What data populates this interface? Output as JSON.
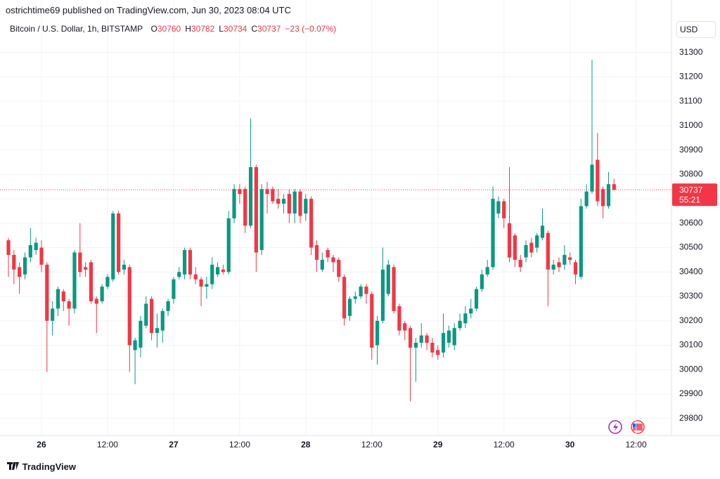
{
  "header": {
    "publisher": "ostrichtime69 published on TradingView.com, Jun 30, 2023 08:04 UTC"
  },
  "footer": {
    "brand": "TradingView"
  },
  "chart_data": {
    "type": "candlestick",
    "symbol": "Bitcoin / U.S. Dollar, 1h, BITSTAMP",
    "ohlc_labels": [
      "O",
      "H",
      "L",
      "C"
    ],
    "change_label": "−23 (−0.07%)",
    "currency": "USD",
    "countdown": "55:21",
    "up_color": "#089981",
    "down_color": "#f23645",
    "grid": true,
    "ylim": [
      29730,
      31515
    ],
    "yticks": [
      29800,
      29900,
      30000,
      30100,
      30200,
      30300,
      30400,
      30500,
      30600,
      30700,
      30800,
      30900,
      31000,
      31100,
      31200,
      31300
    ],
    "categories": [
      null,
      null,
      null,
      null,
      null,
      null,
      "26",
      null,
      null,
      null,
      null,
      null,
      null,
      null,
      null,
      null,
      null,
      null,
      "12:00",
      null,
      null,
      null,
      null,
      null,
      null,
      null,
      null,
      null,
      null,
      null,
      "27",
      null,
      null,
      null,
      null,
      null,
      null,
      null,
      null,
      null,
      null,
      null,
      "12:00",
      null,
      null,
      null,
      null,
      null,
      null,
      null,
      null,
      null,
      null,
      null,
      "28",
      null,
      null,
      null,
      null,
      null,
      null,
      null,
      null,
      null,
      null,
      null,
      "12:00",
      null,
      null,
      null,
      null,
      null,
      null,
      null,
      null,
      null,
      null,
      null,
      "29",
      null,
      null,
      null,
      null,
      null,
      null,
      null,
      null,
      null,
      null,
      null,
      "12:00",
      null,
      null,
      null,
      null,
      null,
      null,
      null,
      null,
      null,
      null,
      null,
      "30",
      null,
      null,
      null,
      null,
      null,
      null,
      null,
      null,
      null,
      null,
      null,
      "12:00"
    ],
    "open": [
      30530,
      30470,
      30420,
      30390,
      30460,
      30490,
      30500,
      30430,
      30200,
      30250,
      30320,
      30280,
      30250,
      30480,
      30420,
      30440,
      30290,
      30280,
      30340,
      30370,
      30640,
      30410,
      30420,
      30080,
      30090,
      30180,
      30290,
      30150,
      30160,
      30240,
      30290,
      30380,
      30390,
      30490,
      30390,
      30370,
      30340,
      30350,
      30390,
      30410,
      30400,
      30620,
      30740,
      30740,
      30590,
      30830,
      30490,
      30740,
      30740,
      30700,
      30680,
      30720,
      30640,
      30730,
      30640,
      30700,
      30510,
      30410,
      30490,
      30460,
      30450,
      30380,
      30220,
      30290,
      30300,
      30340,
      30310,
      30100,
      30200,
      30310,
      30420,
      30260,
      30190,
      30170,
      30090,
      30110,
      30140,
      30110,
      30080,
      30070,
      30110,
      30100,
      30170,
      30190,
      30230,
      30250,
      30330,
      30390,
      30420,
      30640,
      30690,
      30600,
      30550,
      30450,
      30460,
      30520,
      30500,
      30540,
      30560,
      30410,
      30440,
      30430,
      30460,
      30440,
      30380,
      30670,
      30730,
      30860,
      30740,
      30670,
      30760,
      null,
      null,
      null,
      null
    ],
    "high": [
      30540,
      30490,
      30440,
      30480,
      30580,
      30540,
      30530,
      30440,
      30280,
      30340,
      30330,
      30290,
      30490,
      30600,
      30440,
      30450,
      30300,
      30350,
      30390,
      30650,
      30650,
      30450,
      30430,
      30130,
      30220,
      30300,
      30300,
      30230,
      30250,
      30290,
      30380,
      30420,
      30500,
      30500,
      30420,
      30380,
      30380,
      30460,
      30440,
      30430,
      30650,
      30760,
      30760,
      30750,
      31030,
      30840,
      30760,
      30770,
      30750,
      30740,
      30720,
      30740,
      30740,
      30740,
      30720,
      30710,
      30530,
      30480,
      30500,
      30470,
      30460,
      30390,
      30300,
      30320,
      30350,
      30350,
      30320,
      30220,
      30500,
      30450,
      30430,
      30270,
      30200,
      30180,
      30130,
      30190,
      30150,
      30130,
      30100,
      30230,
      30180,
      30190,
      30230,
      30260,
      30290,
      30340,
      30410,
      30450,
      30750,
      30710,
      30700,
      30830,
      30560,
      30470,
      30530,
      30540,
      30560,
      30660,
      30570,
      30450,
      30460,
      30510,
      30480,
      30450,
      30700,
      30760,
      31270,
      30970,
      30750,
      30810,
      30782,
      null,
      null,
      null,
      null
    ],
    "low": [
      30380,
      30350,
      30310,
      30370,
      30440,
      30470,
      30400,
      29990,
      30140,
      30220,
      30240,
      30180,
      30230,
      30380,
      30380,
      30270,
      30150,
      30270,
      30330,
      30360,
      30390,
      30390,
      29990,
      29940,
      30050,
      30170,
      30120,
      30090,
      30110,
      30220,
      30270,
      30370,
      30370,
      30370,
      30350,
      30260,
      30290,
      30330,
      30380,
      30390,
      30390,
      30600,
      30680,
      30560,
      30580,
      30400,
      30470,
      30640,
      30680,
      30660,
      30640,
      30600,
      30600,
      30600,
      30610,
      30470,
      30400,
      30400,
      30440,
      30400,
      30360,
      30180,
      30200,
      30270,
      30290,
      30270,
      30040,
      30020,
      30190,
      30300,
      30230,
      30140,
      30120,
      29870,
      29950,
      30090,
      30080,
      30050,
      30040,
      30050,
      30090,
      30080,
      30160,
      30170,
      30210,
      30240,
      30320,
      30380,
      30410,
      30620,
      30580,
      30440,
      30420,
      30400,
      30440,
      30460,
      30480,
      30530,
      30260,
      30390,
      30400,
      30410,
      30430,
      30350,
      30370,
      30660,
      30720,
      30670,
      30620,
      30660,
      30734,
      null,
      null,
      null,
      null
    ],
    "close": [
      30470,
      30410,
      30380,
      30460,
      30510,
      30520,
      30430,
      30200,
      30250,
      30330,
      30280,
      30250,
      30480,
      30400,
      30410,
      30280,
      30270,
      30340,
      30380,
      30640,
      30400,
      30430,
      30100,
      30120,
      30200,
      30270,
      30150,
      30170,
      30240,
      30280,
      30370,
      30400,
      30490,
      30390,
      30370,
      30340,
      30350,
      30430,
      30420,
      30400,
      30620,
      30740,
      30720,
      30590,
      30830,
      30480,
      30740,
      30720,
      30690,
      30680,
      30700,
      30640,
      30730,
      30630,
      30700,
      30500,
      30450,
      30450,
      30460,
      30440,
      30380,
      30210,
      30290,
      30300,
      30340,
      30310,
      30090,
      30200,
      30410,
      30430,
      30240,
      30160,
      30160,
      30090,
      30110,
      30140,
      30110,
      30070,
      30060,
      30150,
      30160,
      30170,
      30200,
      30230,
      30250,
      30330,
      30390,
      30420,
      30700,
      30690,
      30620,
      30460,
      30450,
      30420,
      30510,
      30480,
      30550,
      30590,
      30410,
      30430,
      30420,
      30470,
      30450,
      30390,
      30670,
      30730,
      30840,
      30690,
      30670,
      30760,
      30737,
      null,
      null,
      null,
      null
    ]
  }
}
